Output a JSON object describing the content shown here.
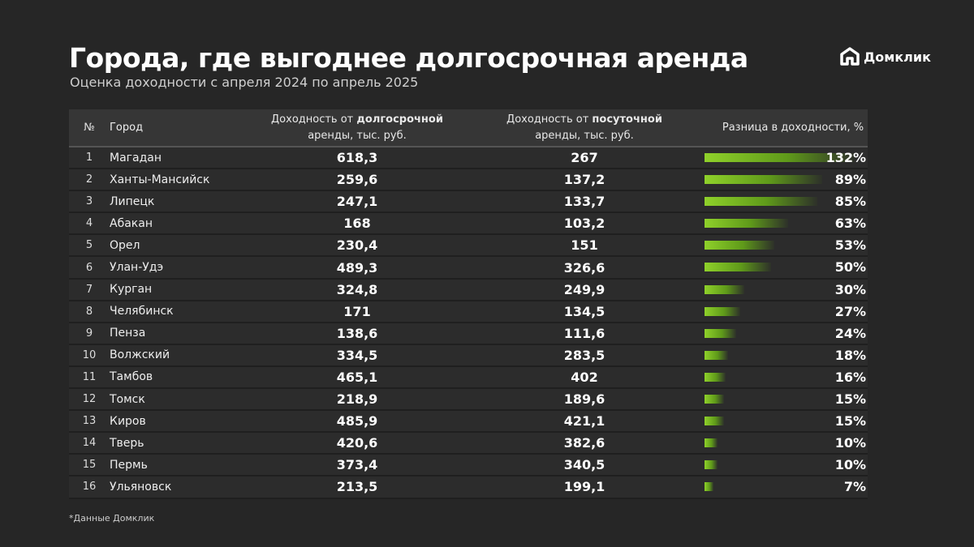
{
  "title": "Города, где выгоднее долгосрочная аренда",
  "subtitle": "Оценка доходности с апреля 2024 по апрель 2025",
  "logo": "Домклик",
  "footnote": "*Данные Домклик",
  "colors": {
    "background": "#262626",
    "bar": "#8fd12a"
  },
  "chart_data": {
    "type": "table",
    "headers": {
      "n": "№",
      "city": "Город",
      "long_pre": "Доходность от ",
      "long_bold": "долгосрочной",
      "long_post": "аренды, тыс. руб.",
      "day_pre": "Доходность от ",
      "day_bold": "посуточной",
      "day_post": "аренды, тыс. руб.",
      "diff": "Разница в доходности, %"
    },
    "rows": [
      {
        "n": "1",
        "city": "Магадан",
        "long": "618,3",
        "day": "267",
        "diff": 132,
        "diff_label": "132%"
      },
      {
        "n": "2",
        "city": "Ханты-Мансийск",
        "long": "259,6",
        "day": "137,2",
        "diff": 89,
        "diff_label": "89%"
      },
      {
        "n": "3",
        "city": "Липецк",
        "long": "247,1",
        "day": "133,7",
        "diff": 85,
        "diff_label": "85%"
      },
      {
        "n": "4",
        "city": "Абакан",
        "long": "168",
        "day": "103,2",
        "diff": 63,
        "diff_label": "63%"
      },
      {
        "n": "5",
        "city": "Орел",
        "long": "230,4",
        "day": "151",
        "diff": 53,
        "diff_label": "53%"
      },
      {
        "n": "6",
        "city": "Улан-Удэ",
        "long": "489,3",
        "day": "326,6",
        "diff": 50,
        "diff_label": "50%"
      },
      {
        "n": "7",
        "city": "Курган",
        "long": "324,8",
        "day": "249,9",
        "diff": 30,
        "diff_label": "30%"
      },
      {
        "n": "8",
        "city": "Челябинск",
        "long": "171",
        "day": "134,5",
        "diff": 27,
        "diff_label": "27%"
      },
      {
        "n": "9",
        "city": "Пенза",
        "long": "138,6",
        "day": "111,6",
        "diff": 24,
        "diff_label": "24%"
      },
      {
        "n": "10",
        "city": "Волжский",
        "long": "334,5",
        "day": "283,5",
        "diff": 18,
        "diff_label": "18%"
      },
      {
        "n": "11",
        "city": "Тамбов",
        "long": "465,1",
        "day": "402",
        "diff": 16,
        "diff_label": "16%"
      },
      {
        "n": "12",
        "city": "Томск",
        "long": "218,9",
        "day": "189,6",
        "diff": 15,
        "diff_label": "15%"
      },
      {
        "n": "13",
        "city": "Киров",
        "long": "485,9",
        "day": "421,1",
        "diff": 15,
        "diff_label": "15%"
      },
      {
        "n": "14",
        "city": "Тверь",
        "long": "420,6",
        "day": "382,6",
        "diff": 10,
        "diff_label": "10%"
      },
      {
        "n": "15",
        "city": "Пермь",
        "long": "373,4",
        "day": "340,5",
        "diff": 10,
        "diff_label": "10%"
      },
      {
        "n": "16",
        "city": "Ульяновск",
        "long": "213,5",
        "day": "199,1",
        "diff": 7,
        "diff_label": "7%"
      }
    ]
  }
}
